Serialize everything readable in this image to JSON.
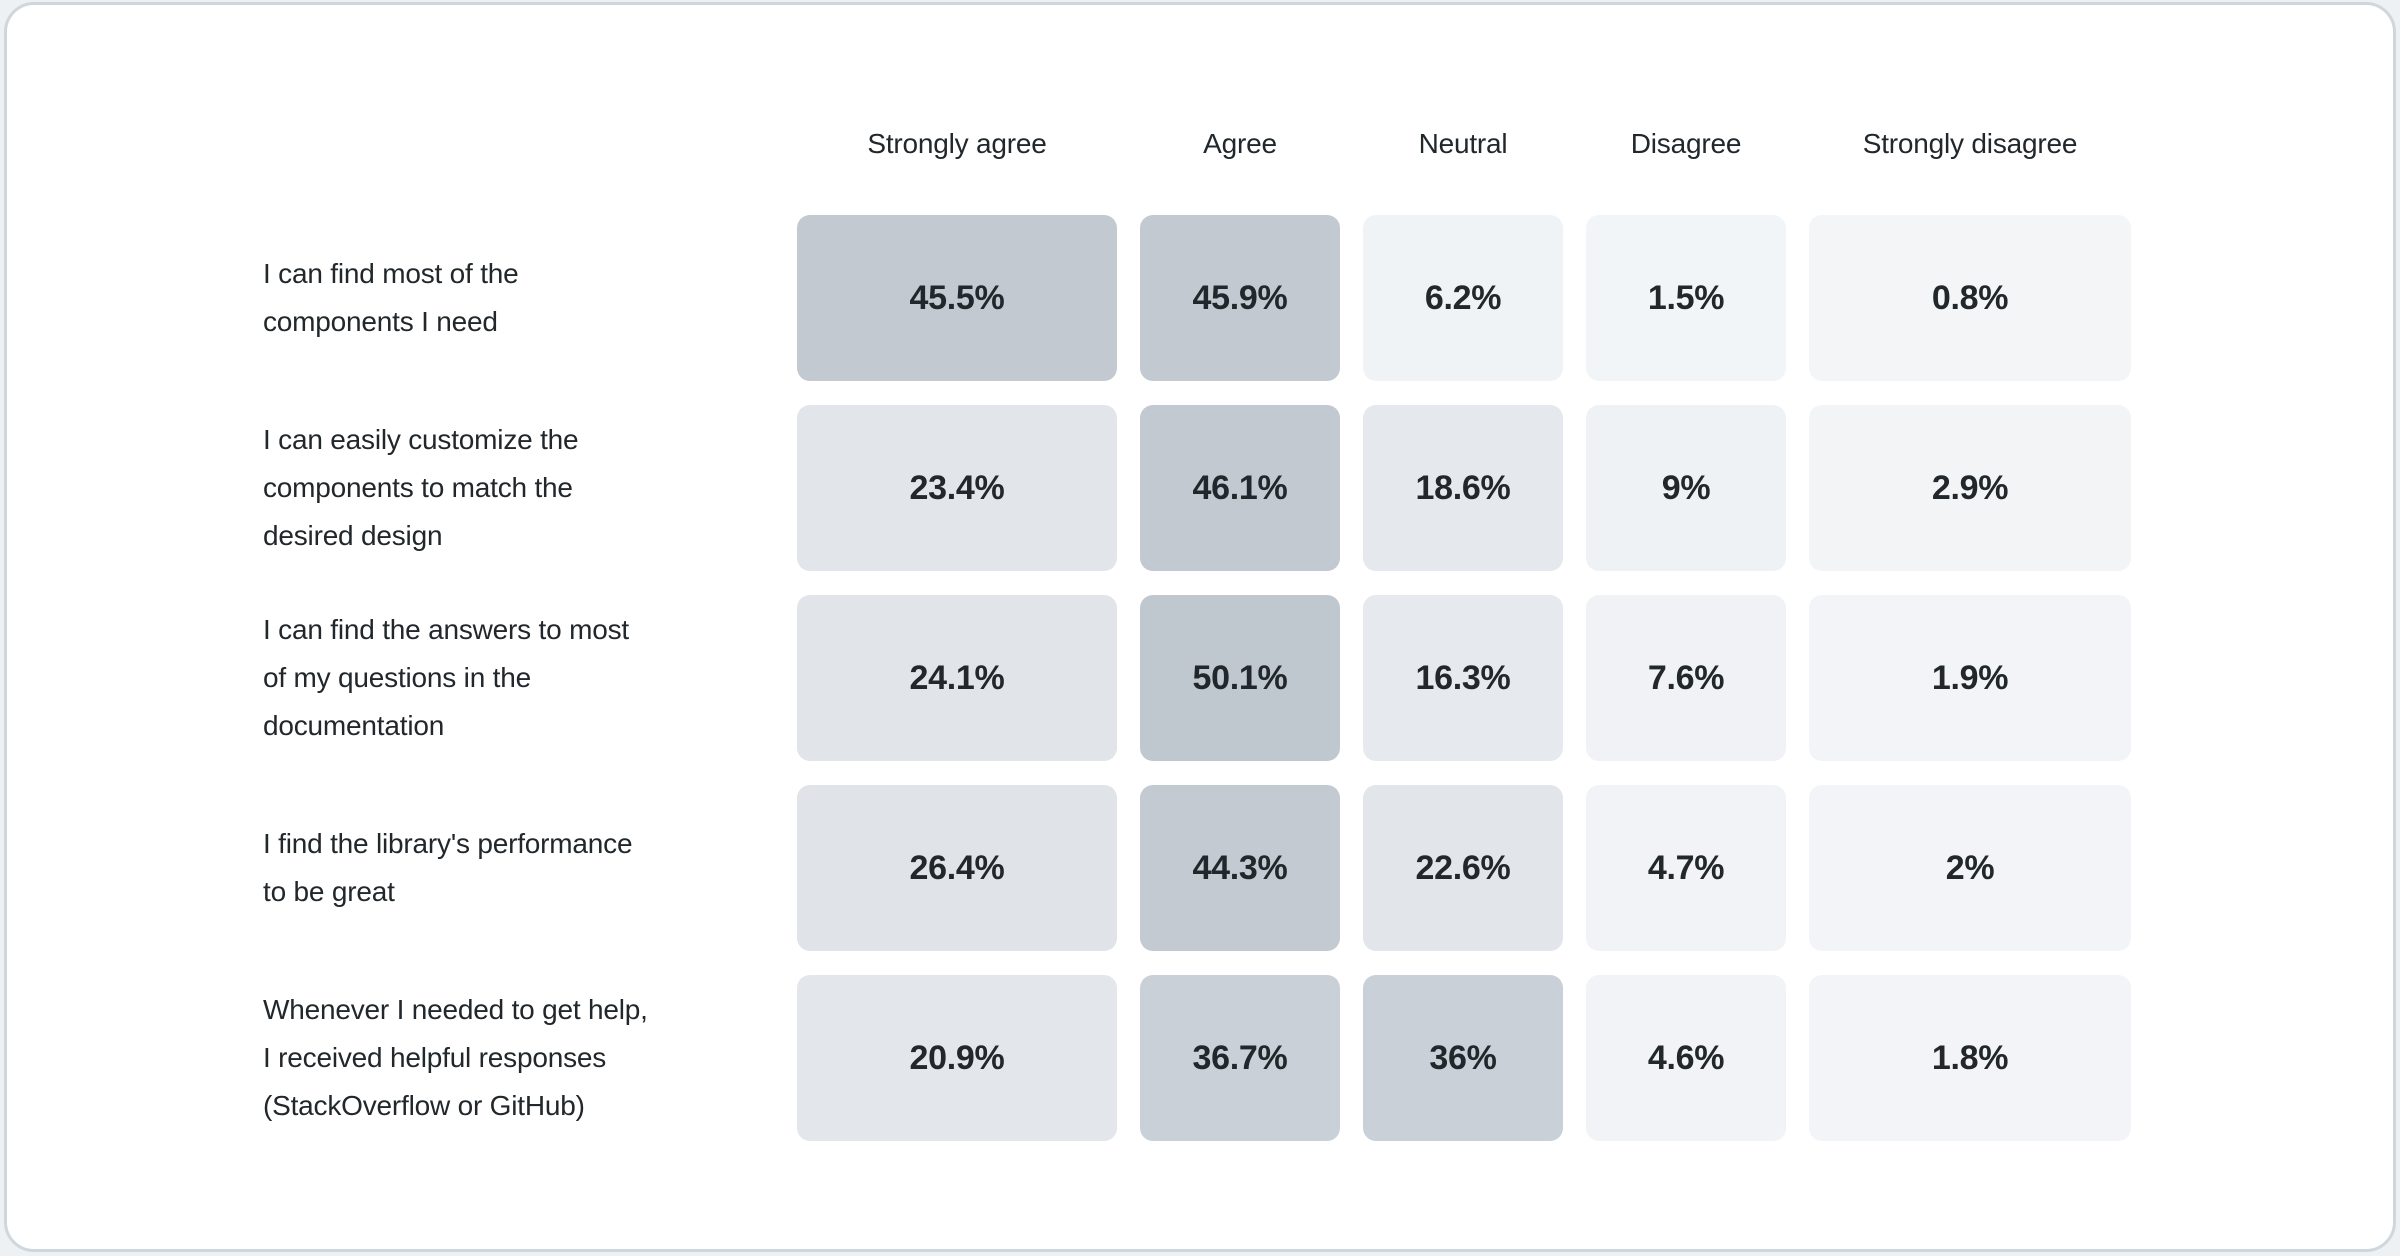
{
  "colors": {
    "page_background": "#eef1f3",
    "card_background": "#ffffff",
    "card_border": "#cfd6dc",
    "text": "#21272a",
    "heat_low": "#f3f5f7",
    "heat_high": "#bfc7cf"
  },
  "chart_data": {
    "type": "heatmap",
    "title": "",
    "legend_position": "none",
    "grid": "off",
    "value_unit": "%",
    "columns": [
      "Strongly agree",
      "Agree",
      "Neutral",
      "Disagree",
      "Strongly disagree"
    ],
    "rows": [
      {
        "label": "I can find most of the components I need",
        "label_lines": [
          "I can find most of the",
          "components I need"
        ],
        "values": [
          45.5,
          45.9,
          6.2,
          1.5,
          0.8
        ],
        "display_values": [
          "45.5%",
          "45.9%",
          "6.2%",
          "1.5%",
          "0.8%"
        ]
      },
      {
        "label": "I can easily customize the components to match the desired design",
        "label_lines": [
          "I can easily customize the",
          "components to match the",
          "desired design"
        ],
        "values": [
          23.4,
          46.1,
          18.6,
          9,
          2.9
        ],
        "display_values": [
          "23.4%",
          "46.1%",
          "18.6%",
          "9%",
          "2.9%"
        ]
      },
      {
        "label": "I can find the answers to most of my questions in the documentation",
        "label_lines": [
          "I can find the answers to most",
          "of my questions in the",
          "documentation"
        ],
        "values": [
          24.1,
          50.1,
          16.3,
          7.6,
          1.9
        ],
        "display_values": [
          "24.1%",
          "50.1%",
          "16.3%",
          "7.6%",
          "1.9%"
        ]
      },
      {
        "label": "I find the library's performance to be great",
        "label_lines": [
          "I find the library's performance",
          "to be great"
        ],
        "values": [
          26.4,
          44.3,
          22.6,
          4.7,
          2
        ],
        "display_values": [
          "26.4%",
          "44.3%",
          "22.6%",
          "4.7%",
          "2%"
        ]
      },
      {
        "label": "Whenever I needed to get help, I received helpful responses (StackOverflow or GitHub)",
        "label_lines": [
          "Whenever I needed to get help,",
          "I received helpful responses",
          "(StackOverflow or GitHub)"
        ],
        "values": [
          20.9,
          36.7,
          36,
          4.6,
          1.8
        ],
        "display_values": [
          "20.9%",
          "36.7%",
          "36%",
          "4.6%",
          "1.8%"
        ]
      }
    ],
    "color_scale_stops": [
      [
        0,
        "#f3f5f7"
      ],
      [
        9,
        "#eff2f5"
      ],
      [
        16,
        "#e6e9ed"
      ],
      [
        26.5,
        "#e0e4e9"
      ],
      [
        36,
        "#c9d0d7"
      ],
      [
        46,
        "#c2c9d1"
      ],
      [
        50.1,
        "#bfc7cf"
      ]
    ]
  }
}
